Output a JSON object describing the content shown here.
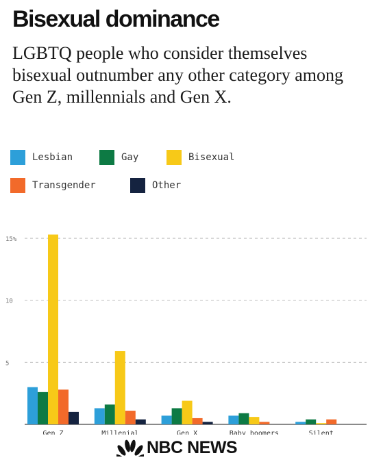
{
  "header": {
    "title": "Bisexual dominance",
    "subtitle": "LGBTQ people who consider themselves bisexual outnumber any other category among Gen Z, millennials and Gen X."
  },
  "logo": {
    "text": "NBC NEWS",
    "icon": "peacock-icon"
  },
  "chart_data": {
    "type": "bar",
    "categories": [
      "Gen Z",
      "Millenial",
      "Gen X",
      "Baby boomers",
      "Silent"
    ],
    "series": [
      {
        "name": "Lesbian",
        "color": "#2d9fd9",
        "values": [
          3.0,
          1.3,
          0.7,
          0.7,
          0.2
        ]
      },
      {
        "name": "Gay",
        "color": "#0d7a44",
        "values": [
          2.6,
          1.6,
          1.3,
          0.9,
          0.4
        ]
      },
      {
        "name": "Bisexual",
        "color": "#f7c918",
        "values": [
          15.3,
          5.9,
          1.9,
          0.6,
          0.1
        ]
      },
      {
        "name": "Transgender",
        "color": "#f26a2a",
        "values": [
          2.8,
          1.1,
          0.5,
          0.2,
          0.4
        ]
      },
      {
        "name": "Other",
        "color": "#152340",
        "values": [
          1.0,
          0.4,
          0.2,
          0.0,
          0.0
        ]
      }
    ],
    "yticks": [
      {
        "value": 5,
        "label": "5"
      },
      {
        "value": 10,
        "label": "10"
      },
      {
        "value": 15,
        "label": "15%"
      }
    ],
    "ylim": [
      0,
      15.5
    ],
    "grid": true,
    "legend": "top"
  }
}
